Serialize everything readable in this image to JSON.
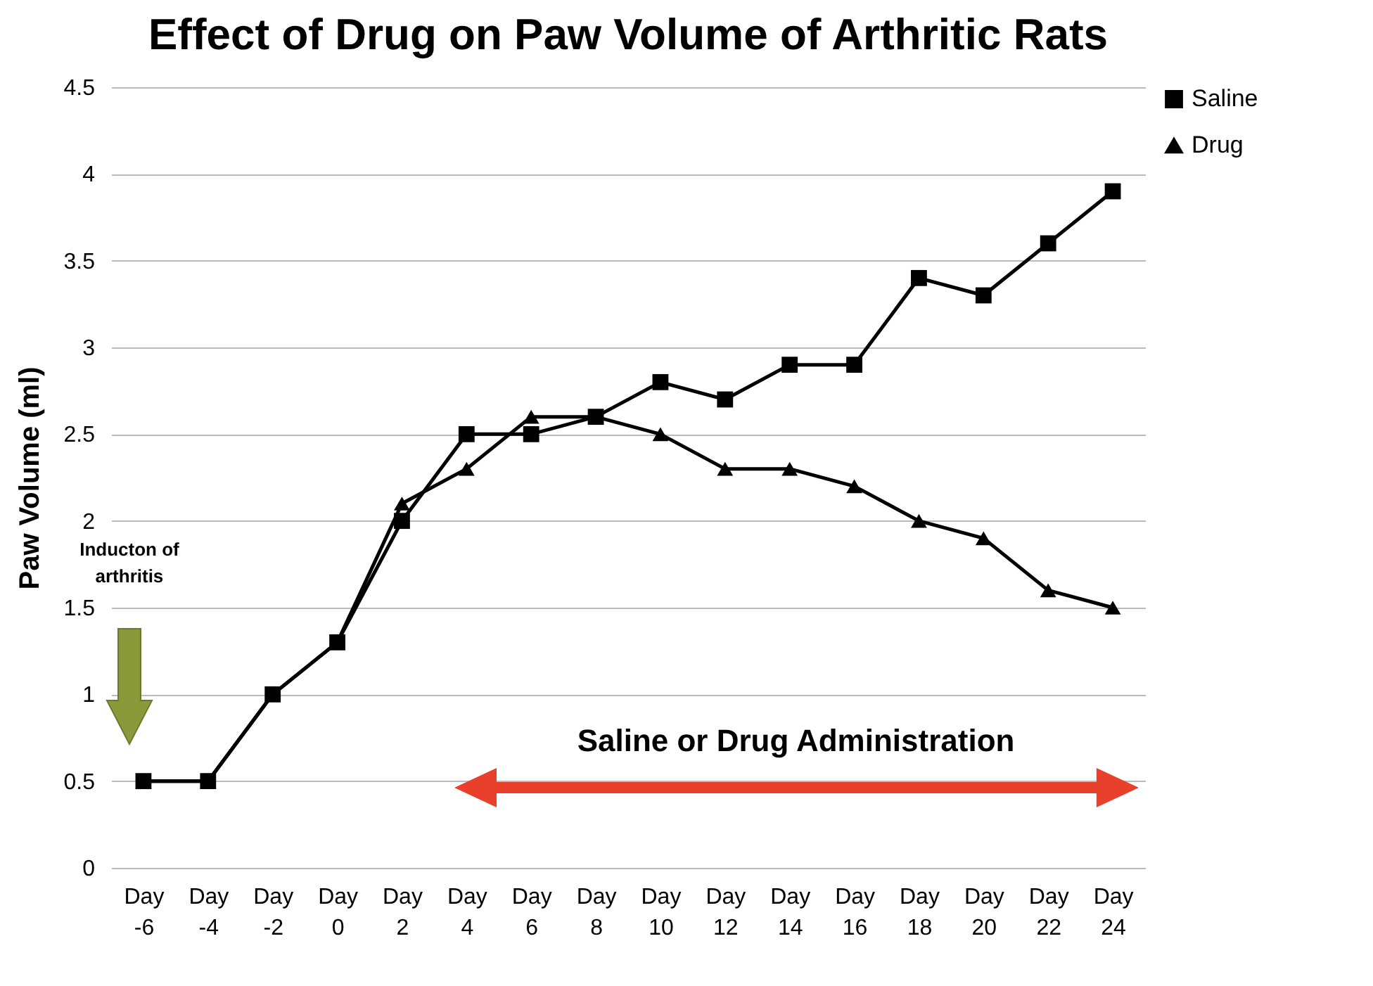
{
  "chart_data": {
    "type": "line",
    "title": "Effect of Drug on Paw Volume of Arthritic Rats",
    "ylabel": "Paw Volume (ml)",
    "categories": [
      "Day -6",
      "Day -4",
      "Day -2",
      "Day 0",
      "Day 2",
      "Day 4",
      "Day 6",
      "Day 8",
      "Day 10",
      "Day 12",
      "Day 14",
      "Day 16",
      "Day 18",
      "Day 20",
      "Day 22",
      "Day 24"
    ],
    "series": [
      {
        "name": "Saline",
        "color": "#000000",
        "marker": "square",
        "values": [
          0.5,
          0.5,
          1.0,
          1.3,
          2.0,
          2.5,
          2.5,
          2.6,
          2.8,
          2.7,
          2.9,
          2.9,
          3.4,
          3.3,
          3.6,
          3.9
        ]
      },
      {
        "name": "Drug",
        "color": "#000000",
        "marker": "triangle",
        "values": [
          0.5,
          0.5,
          1.0,
          1.3,
          2.1,
          2.3,
          2.6,
          2.6,
          2.5,
          2.3,
          2.3,
          2.2,
          2.0,
          1.9,
          1.6,
          1.5
        ]
      }
    ],
    "ylim": [
      0,
      4.5
    ],
    "yticks": [
      0,
      0.5,
      1,
      1.5,
      2,
      2.5,
      3,
      3.5,
      4,
      4.5
    ],
    "grid": "y",
    "legend": "right",
    "line_style": "solid",
    "annotations": [
      "Inducton of arthritis",
      "Saline or Drug Administration"
    ]
  }
}
